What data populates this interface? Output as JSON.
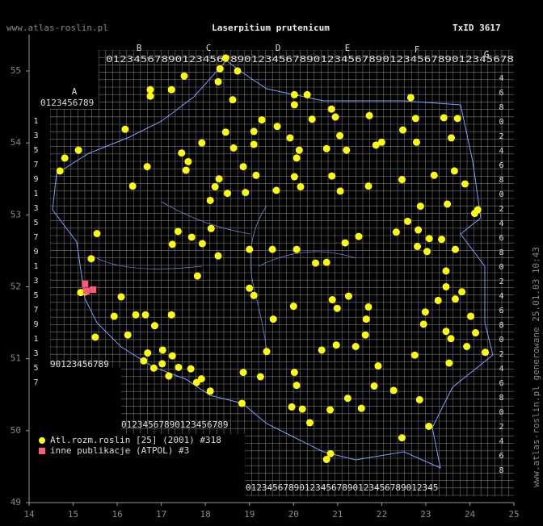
{
  "chart_data": {
    "type": "scatter",
    "title": "Laserpitium prutenicum",
    "site": "www.atlas-roslin.pl",
    "taxon_id": "TxID 3617",
    "side_note": "www.atlas-roslin.pl generowane 25.01.03 10:43",
    "xlim": [
      14,
      25
    ],
    "ylim": [
      49,
      55.5
    ],
    "xticks": [
      14,
      15,
      16,
      17,
      18,
      19,
      20,
      21,
      22,
      23,
      24,
      25
    ],
    "yticks": [
      49,
      50,
      51,
      52,
      53,
      54,
      55
    ],
    "grid_letters": [
      "A",
      "B",
      "C",
      "D",
      "E",
      "F",
      "G"
    ],
    "grid_rows": [
      "0123456789",
      "01234567890123456789012345678901234567890123456789012345678",
      "90123456789",
      "01234567890123456789",
      "012345678901234567890123456789012345"
    ],
    "grid_columns": [
      "1357913579135791357",
      "4680246802468024680246802468"
    ],
    "series": [
      {
        "name": "Atl.rozm.roslin [25] (2001) #318",
        "color": "#ffff00",
        "x": [
          14.7,
          14.81,
          15.12,
          16.18,
          16.75,
          16.75,
          17.23,
          17.52,
          18.33,
          18.46,
          18.73,
          18.29,
          18.62,
          20.02,
          20.31,
          20.02,
          20.86,
          20.95,
          21.72,
          22.66,
          23.41,
          23.72,
          22.77,
          22.48,
          21.87,
          22.0,
          22.79,
          23.58,
          19.28,
          19.1,
          19.1,
          19.63,
          19.92,
          20.13,
          20.07,
          20.42,
          21.05,
          20.75,
          21.2,
          20.87,
          18.46,
          18.64,
          18.86,
          17.46,
          17.61,
          17.56,
          17.92,
          16.68,
          16.35,
          18.31,
          18.22,
          18.5,
          18.91,
          18.11,
          19.15,
          19.61,
          20.02,
          20.16,
          21.06,
          21.7,
          22.46,
          23.19,
          23.65,
          23.89,
          23.49,
          24.11,
          24.18,
          22.88,
          22.33,
          22.59,
          22.83,
          23.08,
          23.36,
          23.67,
          22.81,
          23.03,
          23.46,
          23.46,
          23.82,
          23.67,
          23.28,
          22.99,
          22.95,
          23.46,
          23.57,
          24.02,
          24.13,
          23.93,
          24.35,
          22.75,
          23.53,
          21.7,
          21.65,
          21.63,
          21.25,
          20.99,
          20.88,
          20.5,
          20.75,
          21.17,
          21.48,
          19.52,
          20.07,
          19.0,
          19.0,
          19.1,
          20.0,
          19.54,
          19.39,
          18.86,
          19.25,
          20.02,
          20.07,
          19.96,
          20.2,
          20.37,
          20.83,
          21.23,
          21.54,
          20.64,
          20.97,
          21.41,
          21.92,
          21.83,
          22.27,
          22.46,
          22.86,
          23.07,
          20.75,
          20.84,
          18.83,
          18.11,
          17.91,
          17.67,
          17.8,
          17.39,
          17.03,
          17.25,
          17.02,
          17.17,
          16.83,
          16.69,
          16.6,
          16.24,
          16.42,
          16.64,
          16.85,
          17.23,
          16.09,
          15.5,
          15.41,
          15.54,
          15.27,
          15.17,
          15.93,
          17.82,
          17.25,
          17.38,
          17.69,
          17.93,
          18.29,
          18.13
        ],
        "values": [
          53.61,
          53.79,
          53.9,
          54.19,
          54.74,
          54.65,
          54.74,
          54.93,
          55.03,
          55.18,
          55.0,
          54.85,
          54.6,
          54.67,
          54.67,
          54.53,
          54.47,
          54.36,
          54.38,
          54.63,
          54.35,
          54.34,
          54.34,
          54.18,
          53.97,
          54.01,
          54.01,
          54.07,
          54.32,
          54.16,
          53.98,
          54.23,
          54.07,
          53.9,
          53.79,
          54.33,
          54.1,
          53.92,
          53.9,
          53.54,
          54.15,
          53.93,
          53.67,
          53.86,
          53.74,
          53.62,
          54.0,
          53.67,
          53.4,
          53.5,
          53.39,
          53.3,
          53.31,
          53.2,
          53.55,
          53.34,
          53.53,
          53.39,
          53.33,
          53.4,
          53.49,
          53.55,
          53.61,
          53.43,
          53.15,
          53.02,
          53.07,
          53.12,
          52.76,
          52.91,
          52.79,
          52.67,
          52.66,
          52.52,
          52.56,
          52.49,
          52.22,
          52.0,
          51.93,
          51.83,
          51.81,
          51.65,
          51.48,
          51.38,
          51.28,
          51.59,
          51.36,
          51.17,
          51.09,
          51.05,
          50.94,
          51.72,
          51.55,
          51.33,
          51.87,
          51.7,
          51.82,
          52.33,
          52.34,
          52.61,
          52.7,
          52.52,
          52.52,
          52.52,
          51.98,
          51.88,
          51.73,
          51.55,
          51.1,
          50.81,
          50.75,
          50.81,
          50.63,
          50.33,
          50.3,
          50.11,
          50.29,
          50.45,
          50.31,
          51.12,
          51.19,
          51.17,
          50.9,
          50.62,
          50.56,
          49.9,
          50.43,
          50.06,
          49.6,
          49.68,
          50.38,
          50.55,
          50.72,
          50.86,
          50.67,
          50.88,
          51.12,
          51.04,
          50.93,
          50.76,
          50.87,
          51.08,
          50.97,
          51.33,
          51.61,
          51.61,
          51.46,
          51.61,
          51.86,
          51.3,
          52.39,
          52.74,
          51.93,
          51.92,
          51.59,
          52.15,
          52.59,
          52.77,
          52.69,
          52.6,
          52.43,
          52.81
        ]
      },
      {
        "name": "inne publikacje (ATPOL) #3",
        "color": "#ff5878",
        "x": [
          15.27,
          15.3,
          15.45
        ],
        "values": [
          52.04,
          51.94,
          51.96
        ]
      }
    ]
  }
}
